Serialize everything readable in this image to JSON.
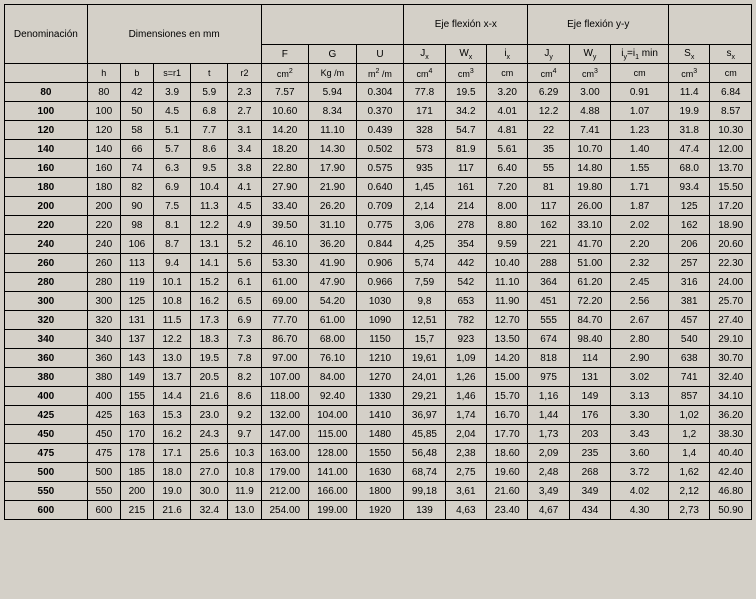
{
  "headers": {
    "group": {
      "denominacion": "Denominación",
      "dimensiones": "Dimensiones en mm",
      "eje_xx": "Eje flexión x-x",
      "eje_yy": "Eje flexión y-y"
    },
    "sym": {
      "h": "h",
      "b": "b",
      "sr1": "s=r1",
      "t": "t",
      "r2": "r2",
      "F": "F",
      "G": "G",
      "U": "U",
      "Jx": "Jₓ",
      "Wx": "Wₓ",
      "ix": "iₓ",
      "Jy": "Jᵧ",
      "Wy": "Wᵧ",
      "iyi1": "iᵧ=i1 min",
      "Sx": "Sₓ",
      "sx": "sₓ"
    },
    "units": {
      "F": "cm²",
      "G": "Kg /m",
      "U": "m² /m",
      "Jx": "cm⁴",
      "Wx": "cm³",
      "ix": "cm",
      "Jy": "cm⁴",
      "Wy": "cm³",
      "iyi1": "cm",
      "Sx": "cm³",
      "sx": "cm"
    }
  },
  "columns": [
    "denom",
    "h",
    "b",
    "sr1",
    "t",
    "r2",
    "F",
    "G",
    "U",
    "Jx",
    "Wx",
    "ix",
    "Jy",
    "Wy",
    "iyi1",
    "Sx",
    "sx"
  ],
  "col_widths": [
    "80px",
    "32px",
    "32px",
    "36px",
    "36px",
    "32px",
    "46px",
    "46px",
    "46px",
    "40px",
    "40px",
    "40px",
    "40px",
    "40px",
    "56px",
    "40px",
    "40px"
  ],
  "rows": [
    [
      "80",
      "80",
      "42",
      "3.9",
      "5.9",
      "2.3",
      "7.57",
      "5.94",
      "0.304",
      "77.8",
      "19.5",
      "3.20",
      "6.29",
      "3.00",
      "0.91",
      "11.4",
      "6.84"
    ],
    [
      "100",
      "100",
      "50",
      "4.5",
      "6.8",
      "2.7",
      "10.60",
      "8.34",
      "0.370",
      "171",
      "34.2",
      "4.01",
      "12.2",
      "4.88",
      "1.07",
      "19.9",
      "8.57"
    ],
    [
      "120",
      "120",
      "58",
      "5.1",
      "7.7",
      "3.1",
      "14.20",
      "11.10",
      "0.439",
      "328",
      "54.7",
      "4.81",
      "22",
      "7.41",
      "1.23",
      "31.8",
      "10.30"
    ],
    [
      "140",
      "140",
      "66",
      "5.7",
      "8.6",
      "3.4",
      "18.20",
      "14.30",
      "0.502",
      "573",
      "81.9",
      "5.61",
      "35",
      "10.70",
      "1.40",
      "47.4",
      "12.00"
    ],
    [
      "160",
      "160",
      "74",
      "6.3",
      "9.5",
      "3.8",
      "22.80",
      "17.90",
      "0.575",
      "935",
      "117",
      "6.40",
      "55",
      "14.80",
      "1.55",
      "68.0",
      "13.70"
    ],
    [
      "180",
      "180",
      "82",
      "6.9",
      "10.4",
      "4.1",
      "27.90",
      "21.90",
      "0.640",
      "1,45",
      "161",
      "7.20",
      "81",
      "19.80",
      "1.71",
      "93.4",
      "15.50"
    ],
    [
      "200",
      "200",
      "90",
      "7.5",
      "11.3",
      "4.5",
      "33.40",
      "26.20",
      "0.709",
      "2,14",
      "214",
      "8.00",
      "117",
      "26.00",
      "1.87",
      "125",
      "17.20"
    ],
    [
      "220",
      "220",
      "98",
      "8.1",
      "12.2",
      "4.9",
      "39.50",
      "31.10",
      "0.775",
      "3,06",
      "278",
      "8.80",
      "162",
      "33.10",
      "2.02",
      "162",
      "18.90"
    ],
    [
      "240",
      "240",
      "106",
      "8.7",
      "13.1",
      "5.2",
      "46.10",
      "36.20",
      "0.844",
      "4,25",
      "354",
      "9.59",
      "221",
      "41.70",
      "2.20",
      "206",
      "20.60"
    ],
    [
      "260",
      "260",
      "113",
      "9.4",
      "14.1",
      "5.6",
      "53.30",
      "41.90",
      "0.906",
      "5,74",
      "442",
      "10.40",
      "288",
      "51.00",
      "2.32",
      "257",
      "22.30"
    ],
    [
      "280",
      "280",
      "119",
      "10.1",
      "15.2",
      "6.1",
      "61.00",
      "47.90",
      "0.966",
      "7,59",
      "542",
      "11.10",
      "364",
      "61.20",
      "2.45",
      "316",
      "24.00"
    ],
    [
      "300",
      "300",
      "125",
      "10.8",
      "16.2",
      "6.5",
      "69.00",
      "54.20",
      "1030",
      "9,8",
      "653",
      "11.90",
      "451",
      "72.20",
      "2.56",
      "381",
      "25.70"
    ],
    [
      "320",
      "320",
      "131",
      "11.5",
      "17.3",
      "6.9",
      "77.70",
      "61.00",
      "1090",
      "12,51",
      "782",
      "12.70",
      "555",
      "84.70",
      "2.67",
      "457",
      "27.40"
    ],
    [
      "340",
      "340",
      "137",
      "12.2",
      "18.3",
      "7.3",
      "86.70",
      "68.00",
      "1150",
      "15,7",
      "923",
      "13.50",
      "674",
      "98.40",
      "2.80",
      "540",
      "29.10"
    ],
    [
      "360",
      "360",
      "143",
      "13.0",
      "19.5",
      "7.8",
      "97.00",
      "76.10",
      "1210",
      "19,61",
      "1,09",
      "14.20",
      "818",
      "114",
      "2.90",
      "638",
      "30.70"
    ],
    [
      "380",
      "380",
      "149",
      "13.7",
      "20.5",
      "8.2",
      "107.00",
      "84.00",
      "1270",
      "24,01",
      "1,26",
      "15.00",
      "975",
      "131",
      "3.02",
      "741",
      "32.40"
    ],
    [
      "400",
      "400",
      "155",
      "14.4",
      "21.6",
      "8.6",
      "118.00",
      "92.40",
      "1330",
      "29,21",
      "1,46",
      "15.70",
      "1,16",
      "149",
      "3.13",
      "857",
      "34.10"
    ],
    [
      "425",
      "425",
      "163",
      "15.3",
      "23.0",
      "9.2",
      "132.00",
      "104.00",
      "1410",
      "36,97",
      "1,74",
      "16.70",
      "1,44",
      "176",
      "3.30",
      "1,02",
      "36.20"
    ],
    [
      "450",
      "450",
      "170",
      "16.2",
      "24.3",
      "9.7",
      "147.00",
      "115.00",
      "1480",
      "45,85",
      "2,04",
      "17.70",
      "1,73",
      "203",
      "3.43",
      "1,2",
      "38.30"
    ],
    [
      "475",
      "475",
      "178",
      "17.1",
      "25.6",
      "10.3",
      "163.00",
      "128.00",
      "1550",
      "56,48",
      "2,38",
      "18.60",
      "2,09",
      "235",
      "3.60",
      "1,4",
      "40.40"
    ],
    [
      "500",
      "500",
      "185",
      "18.0",
      "27.0",
      "10.8",
      "179.00",
      "141.00",
      "1630",
      "68,74",
      "2,75",
      "19.60",
      "2,48",
      "268",
      "3.72",
      "1,62",
      "42.40"
    ],
    [
      "550",
      "550",
      "200",
      "19.0",
      "30.0",
      "11.9",
      "212.00",
      "166.00",
      "1800",
      "99,18",
      "3,61",
      "21.60",
      "3,49",
      "349",
      "4.02",
      "2,12",
      "46.80"
    ],
    [
      "600",
      "600",
      "215",
      "21.6",
      "32.4",
      "13.0",
      "254.00",
      "199.00",
      "1920",
      "139",
      "4,63",
      "23.40",
      "4,67",
      "434",
      "4.30",
      "2,73",
      "50.90"
    ]
  ],
  "style": {
    "background": "#d4d0c8",
    "border_color": "#000000",
    "font_family": "Arial",
    "header_fontsize": 10,
    "body_fontsize": 10
  }
}
